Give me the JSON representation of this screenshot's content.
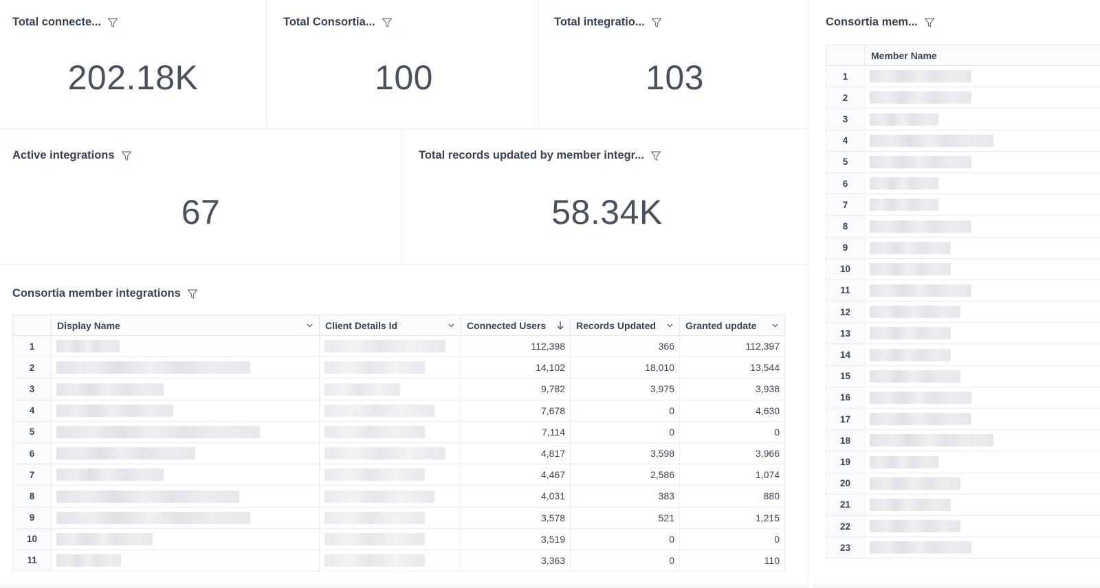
{
  "kpis": {
    "total_connected": {
      "title": "Total connecte...",
      "value": "202.18K"
    },
    "total_consortia": {
      "title": "Total Consortia...",
      "value": "100"
    },
    "total_integrations": {
      "title": "Total integratio...",
      "value": "103"
    },
    "active_integrations": {
      "title": "Active integrations",
      "value": "67"
    },
    "total_records": {
      "title": "Total records updated by member integr...",
      "value": "58.34K"
    }
  },
  "integrations_table": {
    "title": "Consortia member integrations",
    "columns": [
      "Display Name",
      "Client Details Id",
      "Connected Users",
      "Records Updated",
      "Granted update"
    ],
    "sort_column": "Connected Users",
    "rows": [
      {
        "idx": "1",
        "connected": "112,398",
        "records": "366",
        "granted": "112,397"
      },
      {
        "idx": "2",
        "connected": "14,102",
        "records": "18,010",
        "granted": "13,544"
      },
      {
        "idx": "3",
        "connected": "9,782",
        "records": "3,975",
        "granted": "3,938"
      },
      {
        "idx": "4",
        "connected": "7,678",
        "records": "0",
        "granted": "4,630"
      },
      {
        "idx": "5",
        "connected": "7,114",
        "records": "0",
        "granted": "0"
      },
      {
        "idx": "6",
        "connected": "4,817",
        "records": "3,598",
        "granted": "3,966"
      },
      {
        "idx": "7",
        "connected": "4,467",
        "records": "2,586",
        "granted": "1,074"
      },
      {
        "idx": "8",
        "connected": "4,031",
        "records": "383",
        "granted": "880"
      },
      {
        "idx": "9",
        "connected": "3,578",
        "records": "521",
        "granted": "1,215"
      },
      {
        "idx": "10",
        "connected": "3,519",
        "records": "0",
        "granted": "0"
      },
      {
        "idx": "11",
        "connected": "3,363",
        "records": "0",
        "granted": "110"
      }
    ]
  },
  "members_table": {
    "title": "Consortia mem...",
    "column": "Member Name",
    "rows": [
      "1",
      "2",
      "3",
      "4",
      "5",
      "6",
      "7",
      "8",
      "9",
      "10",
      "11",
      "12",
      "13",
      "14",
      "15",
      "16",
      "17",
      "18",
      "19",
      "20",
      "21",
      "22",
      "23"
    ]
  },
  "icons": {
    "filter": "filter-funnel-icon",
    "chevron": "chevron-down-icon",
    "sort": "sort-descending-arrow-icon"
  },
  "colors": {
    "text": "#3a4354",
    "value": "#4a505c",
    "grid": "#e3e6ea",
    "blur": "#e4e5ea"
  }
}
